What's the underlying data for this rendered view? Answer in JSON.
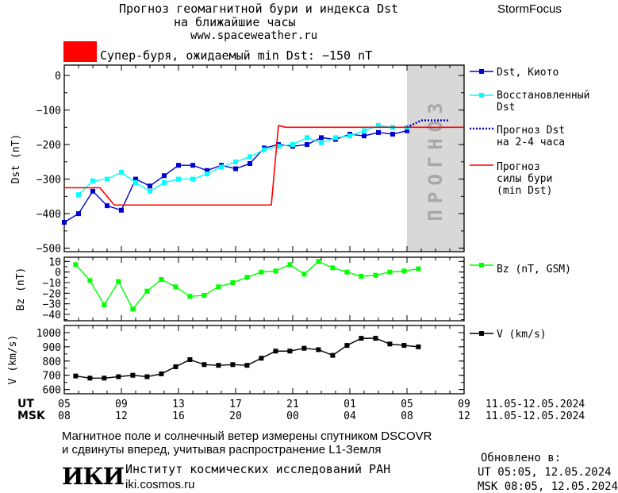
{
  "header": {
    "title_line1": "Прогноз геомагнитной бури и индекса Dst",
    "title_line2": "на ближайшие часы",
    "website": "www.spaceweather.ru",
    "brand": "StormFocus"
  },
  "alert": {
    "color": "#ff0000",
    "text": "Супер-буря, ожидаемый min Dst: −150 nT"
  },
  "footer": {
    "line1": "Магнитное поле и солнечный ветер измерены спутником DSCOVR",
    "line2": "и сдвинуты вперед, учитывая распространение L1-Земля",
    "logo": "ИКИ",
    "institute": "Институт космических исследований РАН",
    "institute_url": "iki.cosmos.ru",
    "updated_label": "Обновлено в:",
    "updated_ut": "UT  05:05, 12.05.2024",
    "updated_msk": "MSK 08:05, 12.05.2024"
  },
  "chart_data": [
    {
      "id": "dst",
      "type": "line",
      "ylabel": "Dst (nT)",
      "ylim": [
        -510,
        30
      ],
      "yticks": [
        0,
        -100,
        -200,
        -300,
        -400,
        -500
      ],
      "x_range_hours": [
        0,
        28
      ],
      "forecast_label": "ПРОГНОЗ",
      "forecast_range_hours": [
        24,
        28
      ],
      "series": [
        {
          "name": "Dst, Киото",
          "color": "#0000cd",
          "style": "line-square",
          "x": [
            0,
            1,
            2,
            3,
            4,
            5,
            6,
            7,
            8,
            9,
            10,
            11,
            12,
            13,
            14,
            15,
            16,
            17,
            18,
            19,
            20,
            21,
            22,
            23,
            24
          ],
          "y": [
            -425,
            -400,
            -335,
            -377,
            -390,
            -300,
            -320,
            -290,
            -260,
            -260,
            -275,
            -260,
            -270,
            -255,
            -210,
            -200,
            -205,
            -200,
            -180,
            -185,
            -170,
            -175,
            -165,
            -170,
            -160
          ]
        },
        {
          "name": "Восстановленный Dst",
          "color": "#00ffff",
          "style": "line-square",
          "x": [
            1,
            2,
            3,
            4,
            5,
            6,
            7,
            8,
            9,
            10,
            11,
            12,
            13,
            14,
            15,
            16,
            17,
            18,
            19,
            20,
            21,
            22,
            23,
            24
          ],
          "y": [
            -345,
            -305,
            -300,
            -280,
            -310,
            -335,
            -310,
            -300,
            -300,
            -285,
            -265,
            -250,
            -235,
            -215,
            -205,
            -200,
            -180,
            -195,
            -180,
            -175,
            -160,
            -145,
            -150,
            -150
          ]
        },
        {
          "name": "Прогноз Dst на 2-4 часа",
          "color": "#0000cd",
          "style": "dotted",
          "x": [
            24,
            24.5,
            25,
            26,
            27
          ],
          "y": [
            -150,
            -140,
            -130,
            -130,
            -130
          ]
        },
        {
          "name": "Прогноз силы бури (min Dst)",
          "color": "#ff0000",
          "style": "step",
          "x": [
            0,
            2.5,
            3.5,
            4,
            14.5,
            15,
            15.5,
            16,
            28
          ],
          "y": [
            -325,
            -325,
            -375,
            -375,
            -375,
            -145,
            -150,
            -150,
            -150
          ]
        }
      ]
    },
    {
      "id": "bz",
      "type": "line",
      "ylabel": "Bz (nT)",
      "legend": "Bz (nT, GSM)",
      "ylim": [
        -46,
        14
      ],
      "yticks": [
        10,
        0,
        -10,
        -20,
        -30,
        -40
      ],
      "series": [
        {
          "name": "Bz (nT, GSM)",
          "color": "#00ff00",
          "style": "line-square",
          "x": [
            0.8,
            1.8,
            2.8,
            3.8,
            4.8,
            5.8,
            6.8,
            7.8,
            8.8,
            9.8,
            10.8,
            11.8,
            12.8,
            13.8,
            14.8,
            15.8,
            16.8,
            17.8,
            18.8,
            19.8,
            20.8,
            21.8,
            22.8,
            23.8,
            24.8
          ],
          "y": [
            7,
            -8,
            -31,
            -9,
            -35,
            -18,
            -7,
            -14,
            -23,
            -22,
            -14,
            -10,
            -5,
            0,
            1,
            7,
            -2,
            10,
            4,
            0,
            -4,
            -3,
            0,
            1,
            3
          ]
        }
      ]
    },
    {
      "id": "v",
      "type": "line",
      "ylabel": "V (km/s)",
      "legend": "V (km/s)",
      "ylim": [
        570,
        1050
      ],
      "yticks": [
        1000,
        900,
        800,
        700,
        600
      ],
      "series": [
        {
          "name": "V (km/s)",
          "color": "#000000",
          "style": "line-square",
          "x": [
            0.8,
            1.8,
            2.8,
            3.8,
            4.8,
            5.8,
            6.8,
            7.8,
            8.8,
            9.8,
            10.8,
            11.8,
            12.8,
            13.8,
            14.8,
            15.8,
            16.8,
            17.8,
            18.8,
            19.8,
            20.8,
            21.8,
            22.8,
            23.8,
            24.8
          ],
          "y": [
            695,
            680,
            680,
            690,
            700,
            690,
            710,
            760,
            810,
            775,
            770,
            775,
            770,
            820,
            870,
            870,
            890,
            880,
            840,
            910,
            960,
            960,
            920,
            910,
            900
          ]
        }
      ]
    }
  ],
  "time_axis": {
    "ut_label": "UT",
    "msk_label": "MSK",
    "ut_ticks": [
      "05",
      "09",
      "13",
      "17",
      "21",
      "01",
      "05",
      "09"
    ],
    "msk_ticks": [
      "08",
      "12",
      "16",
      "20",
      "00",
      "04",
      "08",
      "12"
    ],
    "ut_range": "11.05-12.05.2024",
    "msk_range": "11.05-12.05.2024"
  }
}
